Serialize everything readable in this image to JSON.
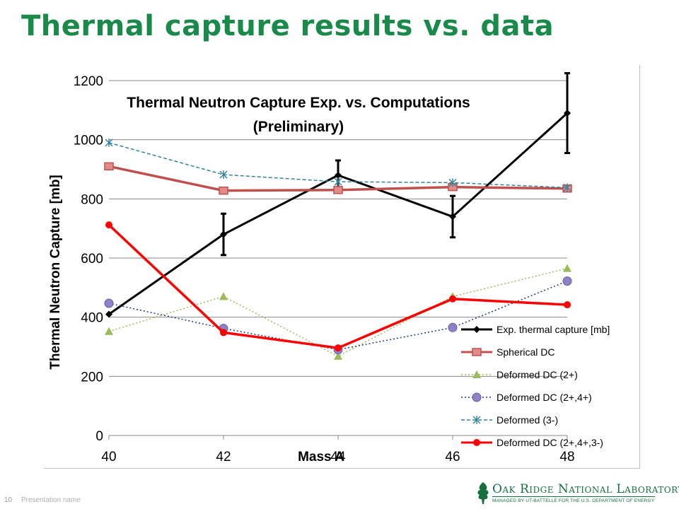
{
  "slide": {
    "title": "Thermal capture results vs. data",
    "page_number": "10",
    "presentation_name": "Presentation name",
    "logo_name": "Oak Ridge National Laboratory",
    "logo_subtitle": "MANAGED BY UT-BATTELLE FOR THE U.S. DEPARTMENT OF ENERGY"
  },
  "chart_data": {
    "type": "line",
    "title_line1": "Thermal Neutron Capture Exp. vs. Computations",
    "title_line2": "(Preliminary)",
    "xlabel": "Mass A",
    "ylabel": "Thermal Neutron Capture [mb]",
    "x": [
      40,
      42,
      44,
      46,
      48
    ],
    "x_tick_labels": [
      "40",
      "42",
      "44",
      "46",
      "48"
    ],
    "y_tick_labels": [
      "0",
      "200",
      "400",
      "600",
      "800",
      "1000",
      "1200"
    ],
    "ylim": [
      0,
      1200
    ],
    "grid": "horizontal",
    "legend_position": "lower-right",
    "series": [
      {
        "name": "Exp. thermal capture [mb]",
        "values": [
          410,
          680,
          880,
          740,
          1090
        ],
        "error": [
          null,
          70,
          50,
          70,
          135
        ],
        "color": "#000000",
        "dash": "solid",
        "width": 3,
        "marker": "diamond"
      },
      {
        "name": "Spherical DC",
        "values": [
          910,
          828,
          830,
          840,
          835
        ],
        "color": "#c0504d",
        "dash": "solid",
        "width": 3.5,
        "marker": "square"
      },
      {
        "name": "Deformed DC (2+)",
        "values": [
          352,
          470,
          268,
          470,
          565
        ],
        "color": "#9bbb59",
        "dash": "dot",
        "width": 1.5,
        "marker": "triangle"
      },
      {
        "name": "Deformed DC (2+,4+)",
        "values": [
          447,
          362,
          290,
          365,
          522
        ],
        "color": "#1f3a7a",
        "dash": "dot",
        "width": 1.5,
        "marker": "circle"
      },
      {
        "name": "Deformed (3-)",
        "values": [
          990,
          882,
          858,
          855,
          838
        ],
        "color": "#31849b",
        "dash": "dash",
        "width": 1.5,
        "marker": "star"
      },
      {
        "name": "Deformed DC (2+,4+,3-)",
        "values": [
          712,
          348,
          296,
          462,
          442
        ],
        "color": "#ff0000",
        "dash": "solid",
        "width": 3.5,
        "marker": "circle-small"
      }
    ]
  }
}
